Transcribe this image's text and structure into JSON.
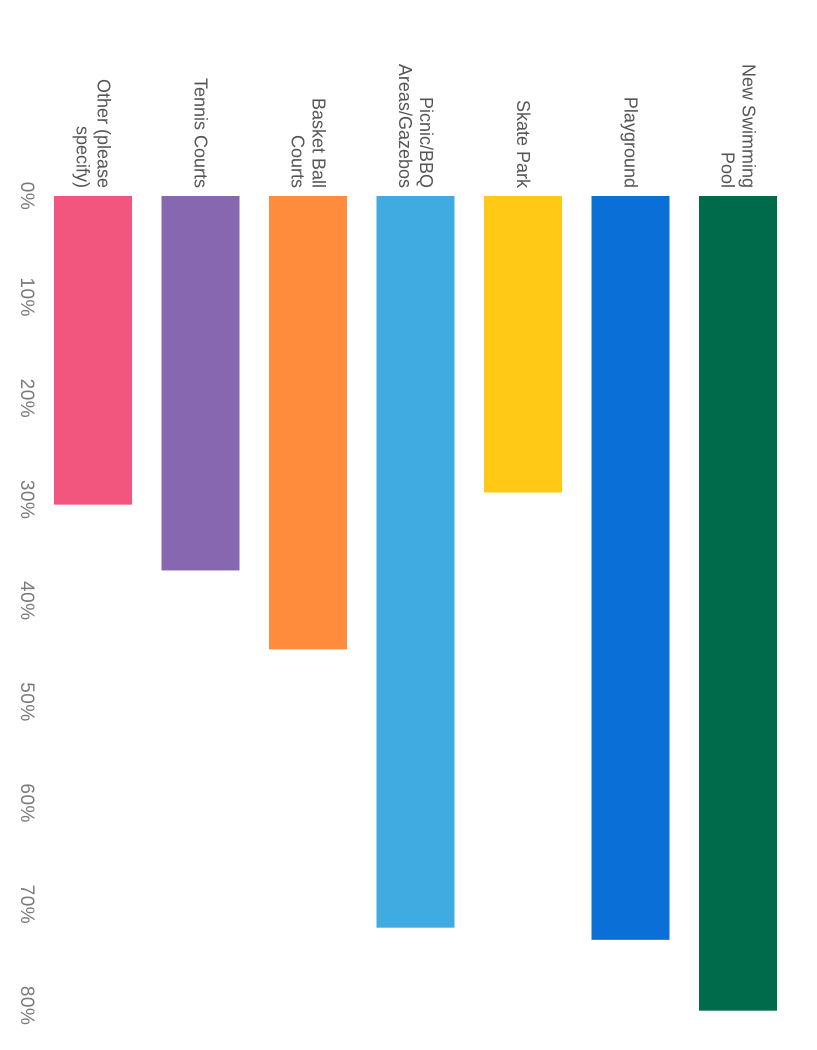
{
  "chart_data": {
    "type": "bar",
    "orientation": "horizontal",
    "categories": [
      [
        "New Swimming",
        "Pool"
      ],
      [
        "Playground"
      ],
      [
        "Skate Park"
      ],
      [
        "Picnic/BBQ",
        "Areas/Gazebos"
      ],
      [
        "Basket Ball",
        "Courts"
      ],
      [
        "Tennis Courts"
      ],
      [
        "Other (please",
        "specify)"
      ]
    ],
    "values": [
      80.5,
      73.5,
      29.3,
      72.3,
      44.8,
      37.0,
      30.5
    ],
    "colors": [
      "#006b4a",
      "#0a6fd6",
      "#ffc916",
      "#3fabe0",
      "#ff8c3c",
      "#8667b0",
      "#f2567e"
    ],
    "xlim": [
      0,
      80
    ],
    "ticks": [
      "0%",
      "10%",
      "20%",
      "30%",
      "40%",
      "50%",
      "60%",
      "70%",
      "80%"
    ],
    "grid": false,
    "title": "",
    "xlabel": "",
    "ylabel": ""
  }
}
